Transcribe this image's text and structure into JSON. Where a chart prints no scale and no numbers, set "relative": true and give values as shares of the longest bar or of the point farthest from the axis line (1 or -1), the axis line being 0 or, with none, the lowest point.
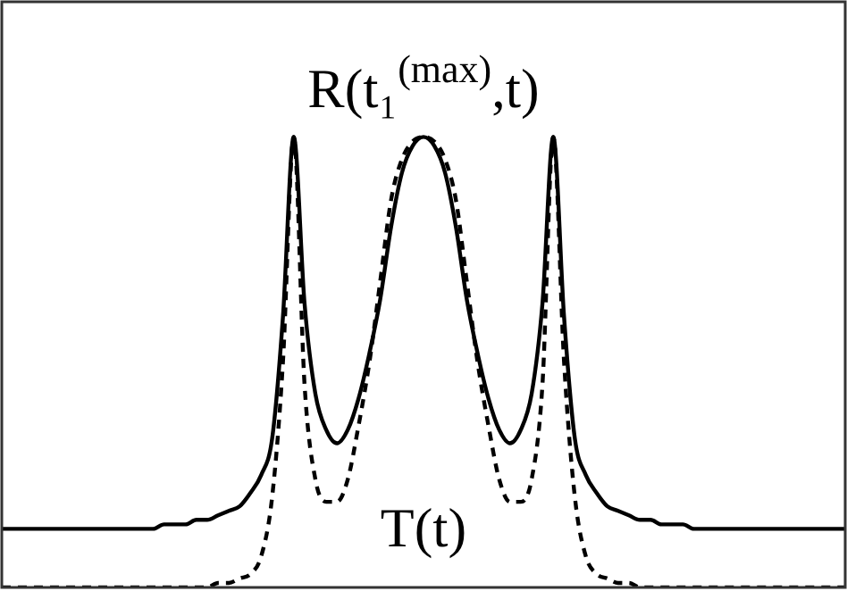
{
  "chart_data": {
    "type": "line",
    "relative": true,
    "legend": false,
    "marker": "none",
    "categories": [
      null,
      null,
      null,
      null,
      null,
      null,
      null,
      null,
      null,
      null,
      null,
      null,
      null,
      null,
      null,
      null,
      null,
      null,
      null,
      null,
      null,
      null,
      null,
      null,
      null,
      null,
      null,
      null,
      null,
      null,
      null,
      null,
      null,
      null,
      null,
      null,
      null,
      null,
      null,
      null,
      null,
      null,
      null,
      null,
      null,
      null,
      null,
      null,
      null,
      null,
      null,
      null,
      null,
      null,
      null,
      null,
      null,
      null,
      null,
      null,
      null,
      null,
      null,
      null,
      null,
      null,
      null,
      null,
      null,
      null,
      null,
      null,
      null,
      null,
      null,
      null,
      null,
      null,
      null
    ],
    "series": [
      {
        "color": "#000000",
        "line_style": "solid",
        "values": [
          0.13,
          0.13,
          0.13,
          0.13,
          0.13,
          0.13,
          0.13,
          0.13,
          0.13,
          0.13,
          0.13,
          0.13,
          0.13,
          0.13,
          0.13,
          0.14,
          0.14,
          0.14,
          0.15,
          0.15,
          0.16,
          0.17,
          0.18,
          0.21,
          0.25,
          0.33,
          0.6,
          1,
          0.63,
          0.43,
          0.35,
          0.32,
          0.35,
          0.42,
          0.52,
          0.64,
          0.8,
          0.92,
          0.98,
          1,
          0.98,
          0.92,
          0.8,
          0.64,
          0.52,
          0.42,
          0.35,
          0.32,
          0.35,
          0.43,
          0.63,
          1,
          0.6,
          0.33,
          0.25,
          0.21,
          0.18,
          0.17,
          0.16,
          0.15,
          0.15,
          0.14,
          0.14,
          0.14,
          0.13,
          0.13,
          0.13,
          0.13,
          0.13,
          0.13,
          0.13,
          0.13,
          0.13,
          0.13,
          0.13,
          0.13,
          0.13,
          0.13,
          0.13
        ]
      },
      {
        "color": "#000000",
        "line_style": "dashed",
        "values": [
          0,
          0,
          0,
          0,
          0,
          0,
          0,
          0,
          0,
          0,
          0,
          0,
          0,
          0,
          0,
          0,
          0,
          0,
          0,
          0,
          0.01,
          0.01,
          0.02,
          0.03,
          0.07,
          0.2,
          0.5,
          1,
          0.45,
          0.24,
          0.19,
          0.19,
          0.24,
          0.36,
          0.5,
          0.68,
          0.86,
          0.95,
          0.99,
          1,
          0.99,
          0.95,
          0.86,
          0.68,
          0.5,
          0.36,
          0.24,
          0.19,
          0.19,
          0.24,
          0.45,
          1,
          0.5,
          0.2,
          0.07,
          0.03,
          0.02,
          0.01,
          0.01,
          0,
          0,
          0,
          0,
          0,
          0,
          0,
          0,
          0,
          0,
          0,
          0,
          0,
          0,
          0,
          0,
          0,
          0,
          0,
          0
        ]
      }
    ],
    "annotations": [
      "R(t₁$^{(max)}$,t)",
      "T(t)"
    ]
  }
}
